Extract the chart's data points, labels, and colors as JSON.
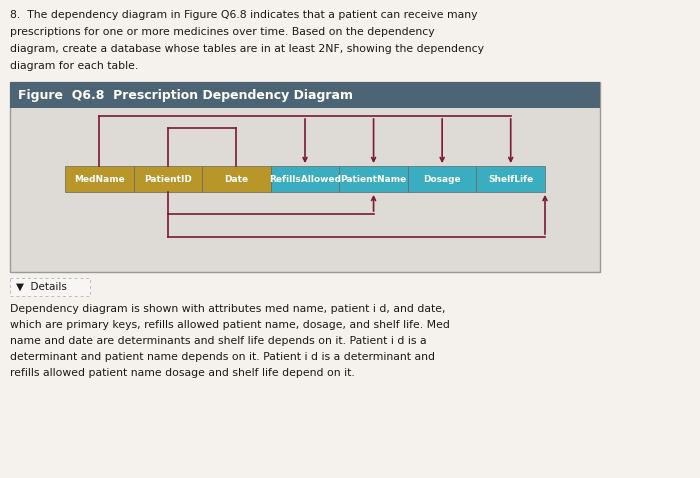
{
  "title_text_line1": "8.  The dependency diagram in Figure Q6.8 indicates that a patient can receive many",
  "title_text_line2": "prescriptions for one or more medicines over time. Based on the dependency",
  "title_text_line3": "diagram, create a database whose tables are in at least 2NF, showing the dependency",
  "title_text_line4": "diagram for each table.",
  "figure_title": "Figure  Q6.8  Prescription Dependency Diagram",
  "figure_title_bg": "#4d6474",
  "figure_title_color": "#ffffff",
  "diagram_bg": "#dedad6",
  "fields": [
    "MedName",
    "PatientID",
    "Date",
    "RefillsAllowed",
    "PatientName",
    "Dosage",
    "ShelfLife"
  ],
  "key_fields_color": "#b8962a",
  "non_key_fields_color": "#3aaec0",
  "key_count": 3,
  "arrow_color": "#7a1a34",
  "details_text": "▼  Details",
  "body_text_lines": [
    "Dependency diagram is shown with attributes med name, patient i d, and date,",
    "which are primary keys, refills allowed patient name, dosage, and shelf life. Med",
    "name and date are determinants and shelf life depends on it. Patient i d is a",
    "determinant and patient name depends on it. Patient i d is a determinant and",
    "refills allowed patient name dosage and shelf life depend on it."
  ],
  "bg_color": "#eae6e2",
  "text_color": "#1a1a1a",
  "page_bg": "#f5f1ed"
}
